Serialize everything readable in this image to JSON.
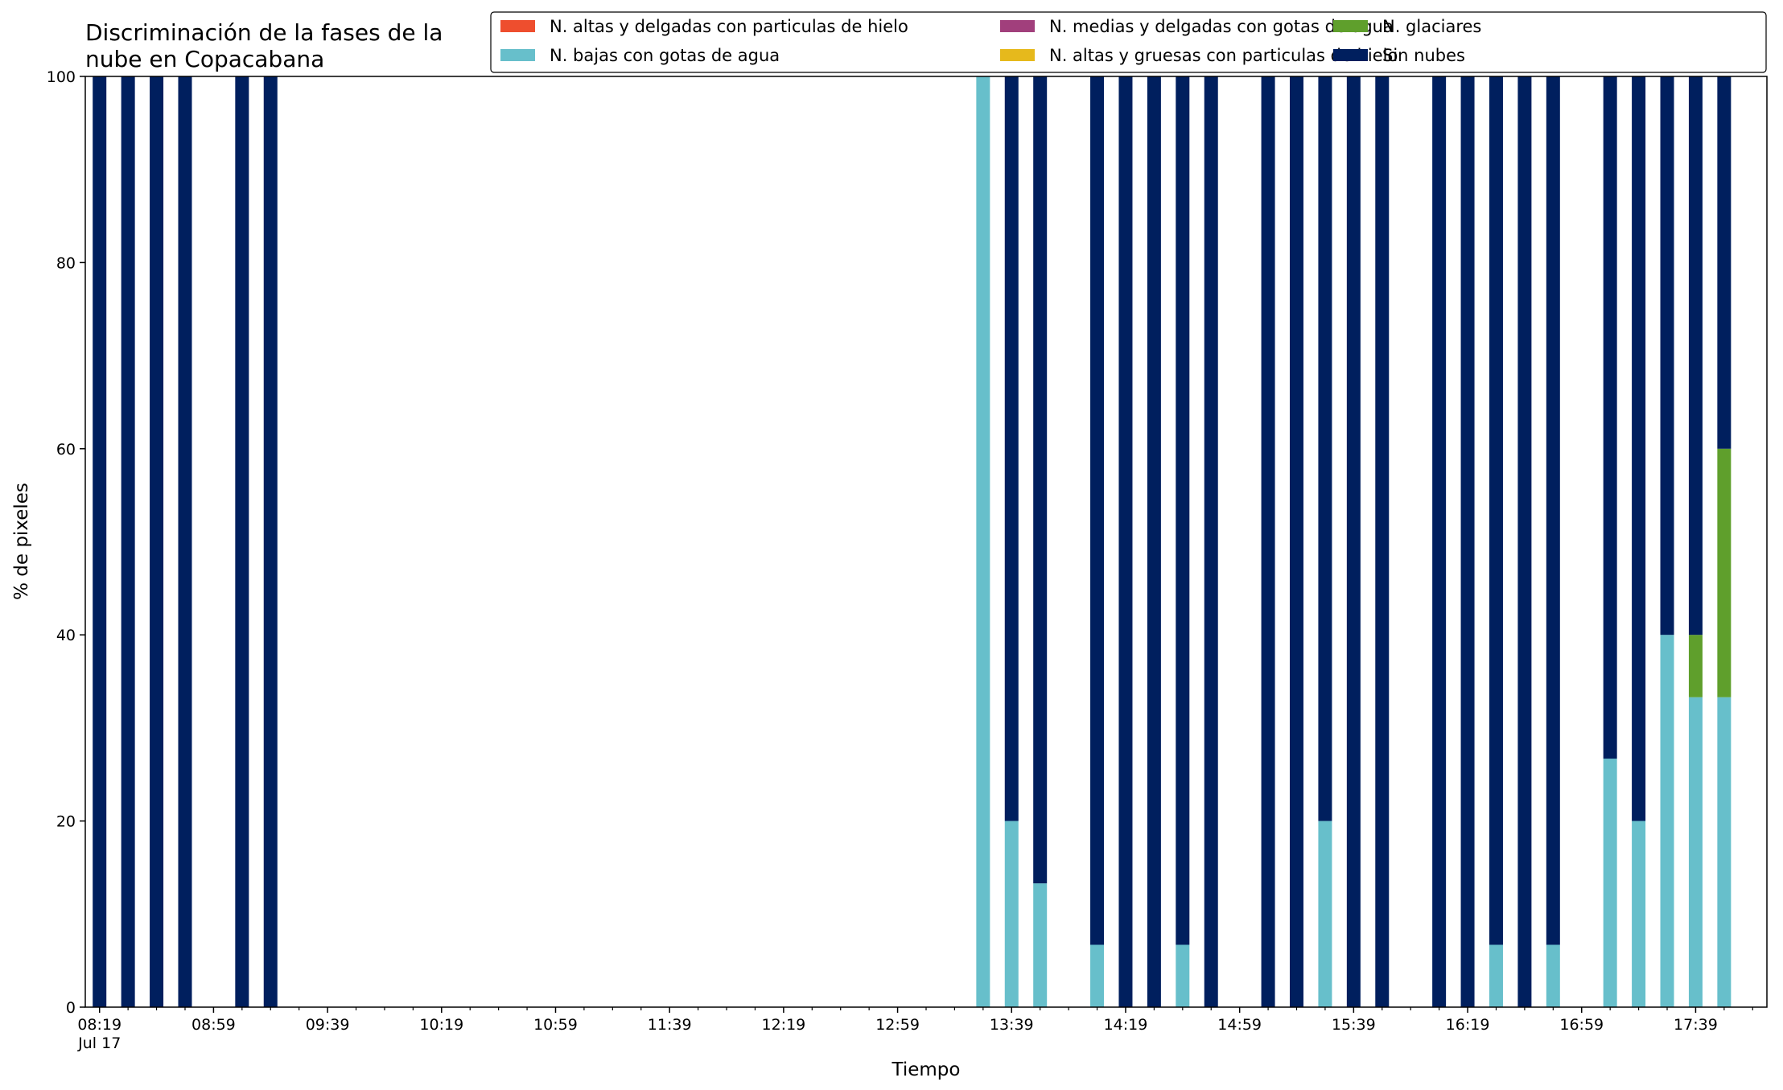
{
  "chart_data": {
    "type": "bar",
    "stacked": true,
    "title_lines": [
      "Discriminación de la fases de la",
      "nube en Copacabana"
    ],
    "xlabel": "Tiempo",
    "ylabel": "% de pixeles",
    "ylim": [
      0,
      100
    ],
    "yticks": [
      0,
      20,
      40,
      60,
      80,
      100
    ],
    "xlim_minutes_from_0819": [
      -5,
      585
    ],
    "bar_interval_minutes": 10,
    "x_major_ticks": [
      {
        "label": "08:19",
        "sublabel": "Jul 17"
      },
      {
        "label": "08:59"
      },
      {
        "label": "09:39"
      },
      {
        "label": "10:19"
      },
      {
        "label": "10:59"
      },
      {
        "label": "11:39"
      },
      {
        "label": "12:19"
      },
      {
        "label": "12:59"
      },
      {
        "label": "13:39"
      },
      {
        "label": "14:19"
      },
      {
        "label": "14:59"
      },
      {
        "label": "15:39"
      },
      {
        "label": "16:19"
      },
      {
        "label": "16:59"
      },
      {
        "label": "17:39"
      }
    ],
    "legend_placement": "top-right",
    "series": [
      {
        "name": "N. altas y delgadas con particulas de hielo",
        "color": "#ee4e2e"
      },
      {
        "name": "N. altas y gruesas con particulas de hielo",
        "color": "#e6b91c"
      },
      {
        "name": "N. medias y delgadas con gotas de agua",
        "color": "#a13f7c"
      },
      {
        "name": "N. bajas con gotas de agua",
        "color": "#67bfcb"
      },
      {
        "name": "N. glaciares",
        "color": "#5f9f2c"
      },
      {
        "name": "Sin nubes",
        "color": "#001f5e"
      }
    ],
    "legend_order": [
      0,
      3,
      2,
      1,
      4,
      5
    ],
    "bars": [
      {
        "time": "08:19",
        "values": [
          0,
          0,
          0,
          0,
          0,
          100
        ]
      },
      {
        "time": "08:29",
        "values": [
          0,
          0,
          0,
          0,
          0,
          100
        ]
      },
      {
        "time": "08:39",
        "values": [
          0,
          0,
          0,
          0,
          0,
          100
        ]
      },
      {
        "time": "08:49",
        "values": [
          0,
          0,
          0,
          0,
          0,
          100
        ]
      },
      {
        "time": "09:09",
        "values": [
          0,
          0,
          0,
          0,
          0,
          100
        ]
      },
      {
        "time": "09:19",
        "values": [
          0,
          0,
          0,
          0,
          0,
          100
        ]
      },
      {
        "time": "13:29",
        "values": [
          0,
          0,
          0,
          100,
          0,
          0
        ]
      },
      {
        "time": "13:39",
        "values": [
          0,
          0,
          0,
          20,
          0,
          80
        ]
      },
      {
        "time": "13:49",
        "values": [
          0,
          0,
          0,
          13.3,
          0,
          86.7
        ]
      },
      {
        "time": "14:09",
        "values": [
          0,
          0,
          0,
          6.7,
          0,
          93.3
        ]
      },
      {
        "time": "14:19",
        "values": [
          0,
          0,
          0,
          0,
          0,
          100
        ]
      },
      {
        "time": "14:29",
        "values": [
          0,
          0,
          0,
          0,
          0,
          100
        ]
      },
      {
        "time": "14:39",
        "values": [
          0,
          0,
          0,
          6.7,
          0,
          93.3
        ]
      },
      {
        "time": "14:49",
        "values": [
          0,
          0,
          0,
          0,
          0,
          100
        ]
      },
      {
        "time": "15:09",
        "values": [
          0,
          0,
          0,
          0,
          0,
          100
        ]
      },
      {
        "time": "15:19",
        "values": [
          0,
          0,
          0,
          0,
          0,
          100
        ]
      },
      {
        "time": "15:29",
        "values": [
          0,
          0,
          0,
          20,
          0,
          80
        ]
      },
      {
        "time": "15:39",
        "values": [
          0,
          0,
          0,
          0,
          0,
          100
        ]
      },
      {
        "time": "15:49",
        "values": [
          0,
          0,
          0,
          0,
          0,
          100
        ]
      },
      {
        "time": "16:09",
        "values": [
          0,
          0,
          0,
          0,
          0,
          100
        ]
      },
      {
        "time": "16:19",
        "values": [
          0,
          0,
          0,
          0,
          0,
          100
        ]
      },
      {
        "time": "16:29",
        "values": [
          0,
          0,
          0,
          6.7,
          0,
          93.3
        ]
      },
      {
        "time": "16:39",
        "values": [
          0,
          0,
          0,
          0,
          0,
          100
        ]
      },
      {
        "time": "16:49",
        "values": [
          0,
          0,
          0,
          6.7,
          0,
          93.3
        ]
      },
      {
        "time": "17:09",
        "values": [
          0,
          0,
          0,
          26.7,
          0,
          73.3
        ]
      },
      {
        "time": "17:19",
        "values": [
          0,
          0,
          0,
          20,
          0,
          80
        ]
      },
      {
        "time": "17:29",
        "values": [
          0,
          0,
          0,
          40,
          0,
          60
        ]
      },
      {
        "time": "17:39",
        "values": [
          0,
          0,
          0,
          33.3,
          6.7,
          60
        ]
      },
      {
        "time": "17:49",
        "values": [
          0,
          0,
          0,
          33.3,
          26.7,
          40
        ]
      }
    ]
  }
}
